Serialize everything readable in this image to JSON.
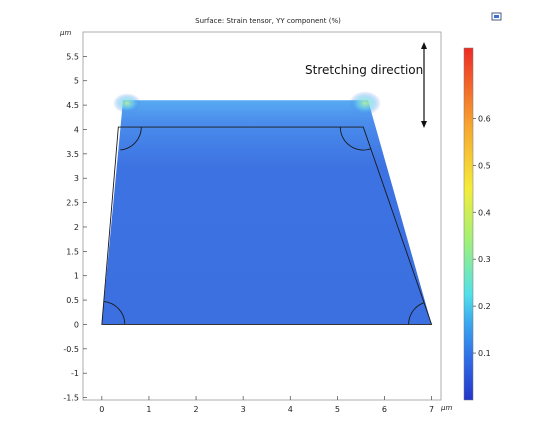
{
  "chart_data": {
    "type": "heatmap",
    "title": "Surface: Strain tensor, YY component (%)",
    "x_unit": "μm",
    "y_unit": "μm",
    "xlim": [
      -0.4,
      7.2
    ],
    "ylim": [
      -1.55,
      6.0
    ],
    "x_ticks": [
      "0",
      "1",
      "2",
      "3",
      "4",
      "5",
      "6",
      "7"
    ],
    "y_ticks": [
      "-1.5",
      "-1",
      "-0.5",
      "0",
      "0.5",
      "1",
      "1.5",
      "2",
      "2.5",
      "3",
      "3.5",
      "4",
      "4.5",
      "5",
      "5.5"
    ],
    "undeformed_outline": [
      [
        0,
        0
      ],
      [
        0.35,
        4.05
      ],
      [
        5.55,
        4.05
      ],
      [
        7,
        0
      ]
    ],
    "deformed_shape": [
      [
        0,
        0
      ],
      [
        0.45,
        4.6
      ],
      [
        5.65,
        4.6
      ],
      [
        7,
        0
      ]
    ],
    "colorbar": {
      "min": 0.0,
      "max": 0.75,
      "ticks": [
        "0.1",
        "0.2",
        "0.3",
        "0.4",
        "0.5",
        "0.6"
      ],
      "colors": [
        "#2436c9",
        "#2f6ee8",
        "#3aa8f0",
        "#52e0ea",
        "#9ff07a",
        "#f4ec3a",
        "#f7a530",
        "#ee2a24"
      ]
    },
    "annotation": "Stretching direction",
    "dominant_color": "#3f74e2",
    "hotspot_color": "#9fe88a"
  },
  "toolbar": {
    "icon": "export-image-icon"
  }
}
